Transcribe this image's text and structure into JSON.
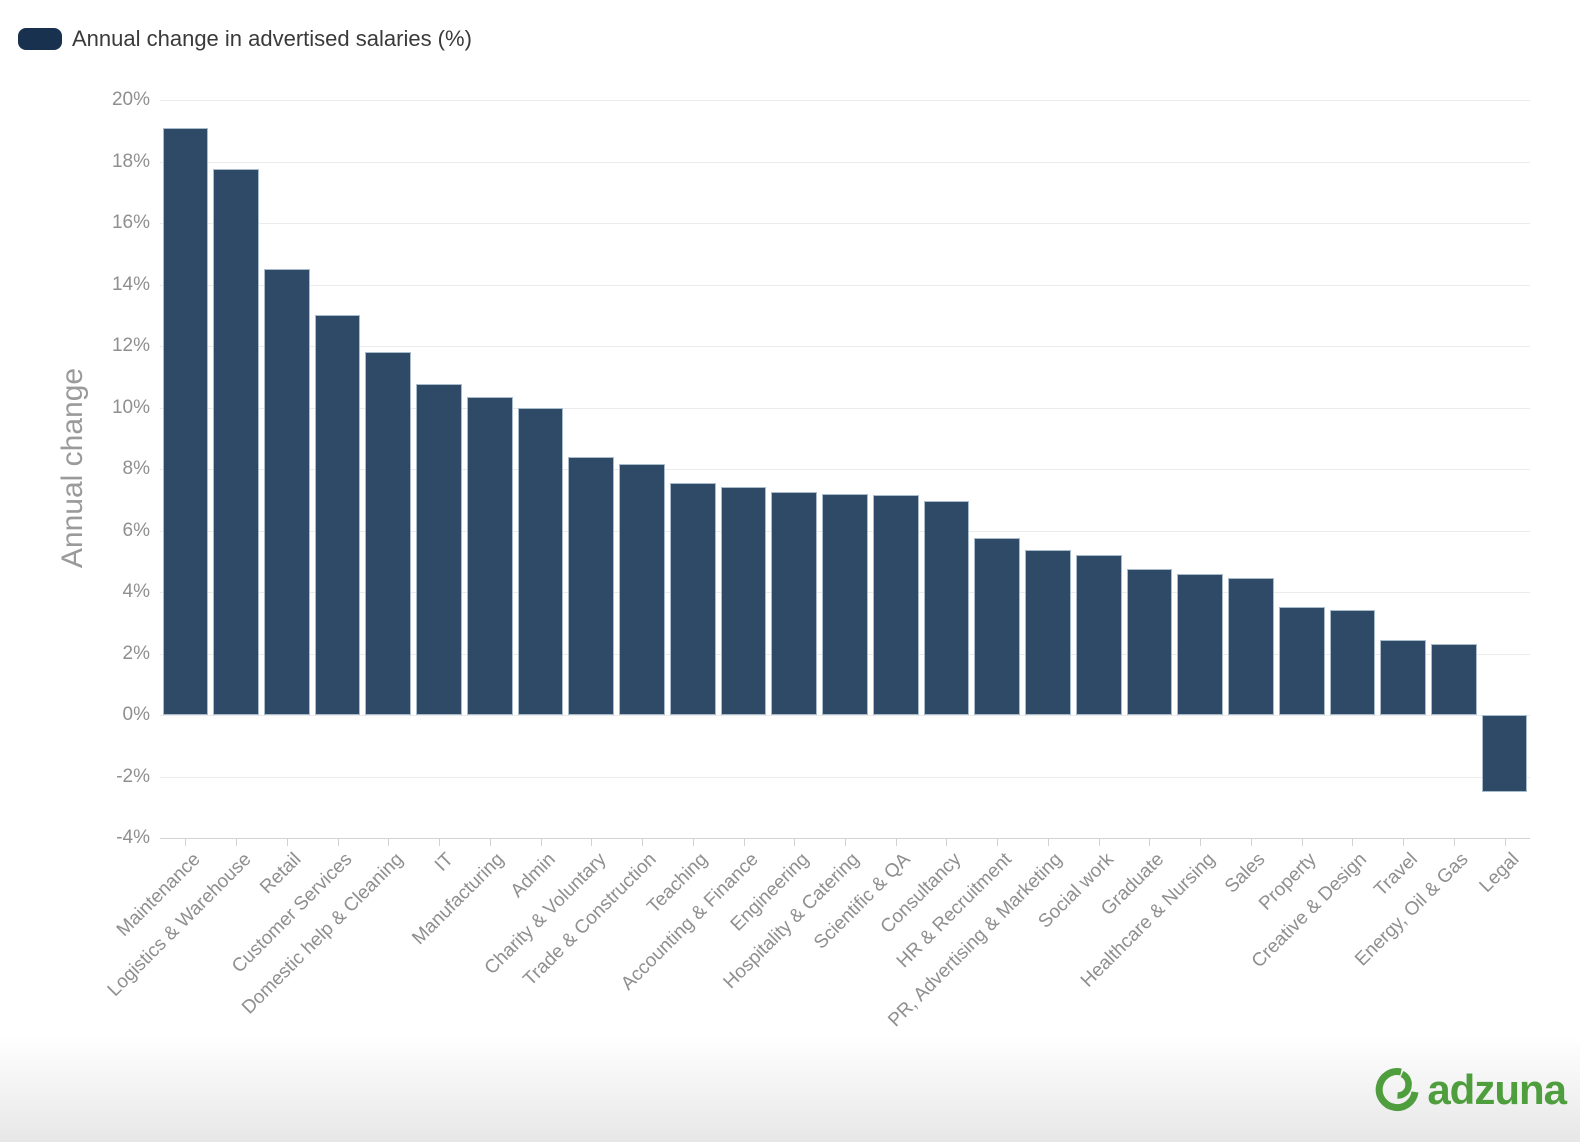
{
  "legend": {
    "label": "Annual change in advertised salaries (%)",
    "swatch_color": "#17314e"
  },
  "y_axis": {
    "title": "Annual change",
    "ticks": [
      "20%",
      "18%",
      "16%",
      "14%",
      "12%",
      "10%",
      "8%",
      "6%",
      "4%",
      "2%",
      "0%",
      "-2%",
      "-4%"
    ]
  },
  "branding": {
    "logo_text": "adzuna",
    "logo_color": "#4f9e3e"
  },
  "chart_data": {
    "type": "bar",
    "title": "",
    "series_name": "Annual change in advertised salaries (%)",
    "xlabel": "",
    "ylabel": "Annual change",
    "ylim": [
      -4,
      20
    ],
    "ytick_step": 2,
    "grid": true,
    "legend_position": "top-left",
    "bar_color": "#2e4a67",
    "bar_border_color": "#a9bccb",
    "categories": [
      "Maintenance",
      "Logistics & Warehouse",
      "Retail",
      "Customer Services",
      "Domestic help & Cleaning",
      "IT",
      "Manufacturing",
      "Admin",
      "Charity & Voluntary",
      "Trade & Construction",
      "Teaching",
      "Accounting & Finance",
      "Engineering",
      "Hospitality & Catering",
      "Scientific & QA",
      "Consultancy",
      "HR & Recruitment",
      "PR, Advertising & Marketing",
      "Social work",
      "Graduate",
      "Healthcare & Nursing",
      "Sales",
      "Property",
      "Creative & Design",
      "Travel",
      "Energy, Oil & Gas",
      "Legal"
    ],
    "values": [
      19.1,
      17.75,
      14.5,
      13.0,
      11.8,
      10.75,
      10.35,
      10.0,
      8.4,
      8.15,
      7.55,
      7.4,
      7.25,
      7.2,
      7.15,
      6.95,
      5.75,
      5.35,
      5.2,
      4.75,
      4.6,
      4.45,
      3.5,
      3.4,
      2.45,
      2.3,
      -2.5
    ]
  }
}
